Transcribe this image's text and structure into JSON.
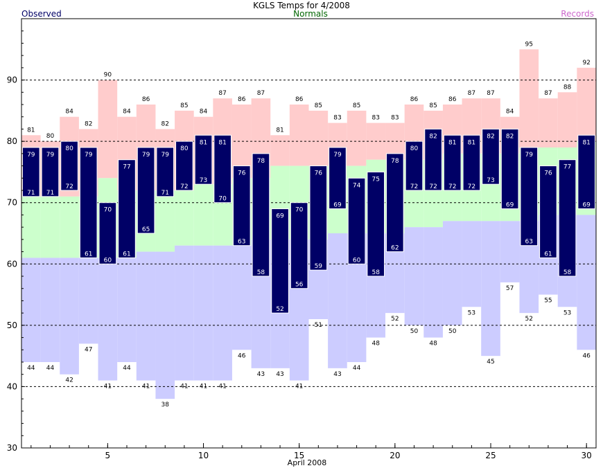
{
  "chart_data": {
    "type": "bar",
    "title": "KGLS Temps for 4/2008",
    "xlabel": "April 2008",
    "ylabel": "",
    "legend": {
      "observed": "Observed",
      "normals": "Normals",
      "records": "Records"
    },
    "xlim": [
      0.5,
      30.5
    ],
    "ylim": [
      30,
      100
    ],
    "xticks": [
      5,
      10,
      15,
      20,
      25,
      30
    ],
    "yticks": [
      30,
      40,
      50,
      60,
      70,
      80,
      90
    ],
    "dashed_gridlines": [
      40,
      50,
      60,
      70,
      80,
      90
    ],
    "days": [
      1,
      2,
      3,
      4,
      5,
      6,
      7,
      8,
      9,
      10,
      11,
      12,
      13,
      14,
      15,
      16,
      17,
      18,
      19,
      20,
      21,
      22,
      23,
      24,
      25,
      26,
      27,
      28,
      29,
      30
    ],
    "series": [
      {
        "name": "Records",
        "key": "record_high",
        "values": [
          81,
          80,
          84,
          82,
          90,
          84,
          86,
          82,
          85,
          84,
          87,
          86,
          87,
          81,
          86,
          85,
          83,
          85,
          83,
          83,
          86,
          85,
          86,
          87,
          87,
          84,
          95,
          87,
          88,
          92
        ]
      },
      {
        "name": "Records",
        "key": "record_low",
        "values": [
          44,
          44,
          42,
          47,
          41,
          44,
          41,
          38,
          41,
          41,
          41,
          46,
          43,
          43,
          41,
          51,
          43,
          44,
          48,
          52,
          50,
          48,
          50,
          53,
          45,
          57,
          52,
          55,
          53,
          46
        ]
      },
      {
        "name": "Normals",
        "key": "normal_high",
        "values": [
          71,
          71,
          71,
          71,
          74,
          72,
          72,
          72,
          72,
          73,
          73,
          74,
          74,
          76,
          76,
          76,
          76,
          76,
          77,
          77,
          77,
          77,
          78,
          78,
          78,
          78,
          79,
          79,
          79,
          80
        ]
      },
      {
        "name": "Normals",
        "key": "normal_low",
        "values": [
          61,
          61,
          61,
          61,
          61,
          61,
          62,
          62,
          63,
          63,
          63,
          63,
          64,
          64,
          64,
          64,
          65,
          65,
          65,
          65,
          66,
          66,
          67,
          67,
          67,
          67,
          67,
          68,
          68,
          68
        ]
      },
      {
        "name": "Observed",
        "key": "observed_high",
        "values": [
          79,
          79,
          80,
          79,
          70,
          77,
          79,
          79,
          80,
          81,
          81,
          76,
          78,
          69,
          70,
          76,
          79,
          74,
          75,
          78,
          80,
          82,
          81,
          81,
          82,
          82,
          79,
          76,
          77,
          81
        ]
      },
      {
        "name": "Observed",
        "key": "observed_low",
        "values": [
          71,
          71,
          72,
          61,
          60,
          61,
          65,
          71,
          72,
          73,
          70,
          63,
          58,
          52,
          56,
          59,
          69,
          60,
          58,
          62,
          72,
          72,
          72,
          72,
          73,
          69,
          63,
          61,
          58,
          69
        ]
      }
    ],
    "colors": {
      "record": "#ffcccc",
      "normal": "#ccffcc",
      "lowband": "#ccccff",
      "observed": "#000066",
      "observed_label": "#000066",
      "normals_label": "#006600",
      "records_label": "#cc66cc"
    }
  }
}
